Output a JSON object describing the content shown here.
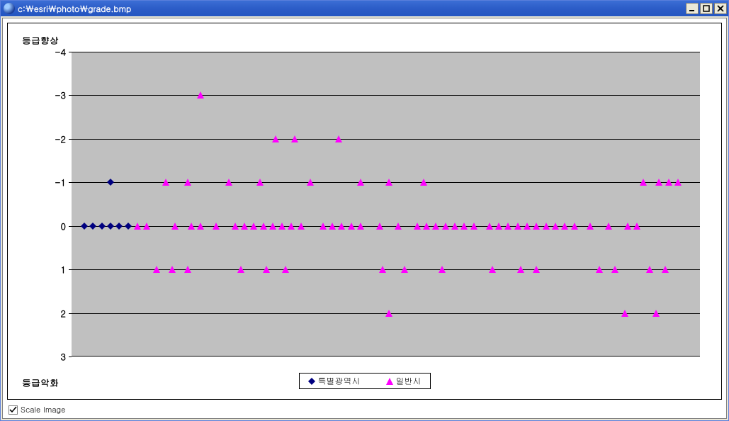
{
  "window": {
    "title": "c:￦esri￦photo￦grade.bmp",
    "controls": {
      "min": "_",
      "max": "□",
      "close": "×"
    }
  },
  "chart": {
    "type": "scatter",
    "label_top": "등급향상",
    "label_bottom": "등급악화",
    "background_color": "#c0c0c0",
    "grid_color": "#000000",
    "plot_border": "#000000",
    "yticks": [
      "-4",
      "-3",
      "-2",
      "-1",
      "0",
      "1",
      "2",
      "3"
    ],
    "ytick_font_size": 13,
    "ytick_font_weight": "bold",
    "y_domain": [
      -4,
      3
    ],
    "x_domain": [
      0,
      100
    ],
    "series": [
      {
        "name": "특별광역시",
        "marker": "diamond",
        "color": "#000080",
        "points": [
          {
            "x": 2.0,
            "y": 0
          },
          {
            "x": 3.4,
            "y": 0
          },
          {
            "x": 4.8,
            "y": 0
          },
          {
            "x": 6.2,
            "y": 0
          },
          {
            "x": 7.6,
            "y": 0
          },
          {
            "x": 9.0,
            "y": 0
          },
          {
            "x": 6.2,
            "y": -1
          }
        ]
      },
      {
        "name": "일반시",
        "marker": "triangle",
        "color": "#ff00ff",
        "points": [
          {
            "x": 20.5,
            "y": -3
          },
          {
            "x": 32.5,
            "y": -2
          },
          {
            "x": 35.5,
            "y": -2
          },
          {
            "x": 42.5,
            "y": -2
          },
          {
            "x": 15.0,
            "y": -1
          },
          {
            "x": 18.5,
            "y": -1
          },
          {
            "x": 25.0,
            "y": -1
          },
          {
            "x": 30.0,
            "y": -1
          },
          {
            "x": 38.0,
            "y": -1
          },
          {
            "x": 46.0,
            "y": -1
          },
          {
            "x": 50.5,
            "y": -1
          },
          {
            "x": 56.0,
            "y": -1
          },
          {
            "x": 91.0,
            "y": -1
          },
          {
            "x": 93.5,
            "y": -1
          },
          {
            "x": 95.0,
            "y": -1
          },
          {
            "x": 96.5,
            "y": -1
          },
          {
            "x": 10.5,
            "y": 0
          },
          {
            "x": 12.0,
            "y": 0
          },
          {
            "x": 16.5,
            "y": 0
          },
          {
            "x": 19.0,
            "y": 0
          },
          {
            "x": 20.5,
            "y": 0
          },
          {
            "x": 23.0,
            "y": 0
          },
          {
            "x": 26.0,
            "y": 0
          },
          {
            "x": 27.5,
            "y": 0
          },
          {
            "x": 29.0,
            "y": 0
          },
          {
            "x": 30.5,
            "y": 0
          },
          {
            "x": 32.0,
            "y": 0
          },
          {
            "x": 33.5,
            "y": 0
          },
          {
            "x": 35.0,
            "y": 0
          },
          {
            "x": 36.5,
            "y": 0
          },
          {
            "x": 40.0,
            "y": 0
          },
          {
            "x": 41.5,
            "y": 0
          },
          {
            "x": 43.0,
            "y": 0
          },
          {
            "x": 44.5,
            "y": 0
          },
          {
            "x": 46.0,
            "y": 0
          },
          {
            "x": 49.0,
            "y": 0
          },
          {
            "x": 52.0,
            "y": 0
          },
          {
            "x": 55.0,
            "y": 0
          },
          {
            "x": 56.5,
            "y": 0
          },
          {
            "x": 58.0,
            "y": 0
          },
          {
            "x": 59.5,
            "y": 0
          },
          {
            "x": 61.0,
            "y": 0
          },
          {
            "x": 62.5,
            "y": 0
          },
          {
            "x": 64.0,
            "y": 0
          },
          {
            "x": 66.5,
            "y": 0
          },
          {
            "x": 68.0,
            "y": 0
          },
          {
            "x": 69.5,
            "y": 0
          },
          {
            "x": 71.0,
            "y": 0
          },
          {
            "x": 72.5,
            "y": 0
          },
          {
            "x": 74.0,
            "y": 0
          },
          {
            "x": 75.5,
            "y": 0
          },
          {
            "x": 77.0,
            "y": 0
          },
          {
            "x": 78.5,
            "y": 0
          },
          {
            "x": 80.0,
            "y": 0
          },
          {
            "x": 82.5,
            "y": 0
          },
          {
            "x": 85.5,
            "y": 0
          },
          {
            "x": 88.5,
            "y": 0
          },
          {
            "x": 90.0,
            "y": 0
          },
          {
            "x": 13.5,
            "y": 1
          },
          {
            "x": 16.0,
            "y": 1
          },
          {
            "x": 18.5,
            "y": 1
          },
          {
            "x": 27.0,
            "y": 1
          },
          {
            "x": 31.0,
            "y": 1
          },
          {
            "x": 34.0,
            "y": 1
          },
          {
            "x": 49.5,
            "y": 1
          },
          {
            "x": 53.0,
            "y": 1
          },
          {
            "x": 59.0,
            "y": 1
          },
          {
            "x": 67.0,
            "y": 1
          },
          {
            "x": 71.5,
            "y": 1
          },
          {
            "x": 74.0,
            "y": 1
          },
          {
            "x": 84.0,
            "y": 1
          },
          {
            "x": 86.5,
            "y": 1
          },
          {
            "x": 92.0,
            "y": 1
          },
          {
            "x": 94.5,
            "y": 1
          },
          {
            "x": 50.5,
            "y": 2
          },
          {
            "x": 88.0,
            "y": 2
          },
          {
            "x": 93.0,
            "y": 2
          }
        ]
      }
    ]
  },
  "legend": {
    "items": [
      {
        "label": "특별광역시",
        "marker": "diamond",
        "color": "#000080"
      },
      {
        "label": "일반시",
        "marker": "triangle",
        "color": "#ff00ff"
      }
    ],
    "border_color": "#000000",
    "background": "#ffffff"
  },
  "footer": {
    "scale_image_label": "Scale Image",
    "scale_image_checked": true
  }
}
